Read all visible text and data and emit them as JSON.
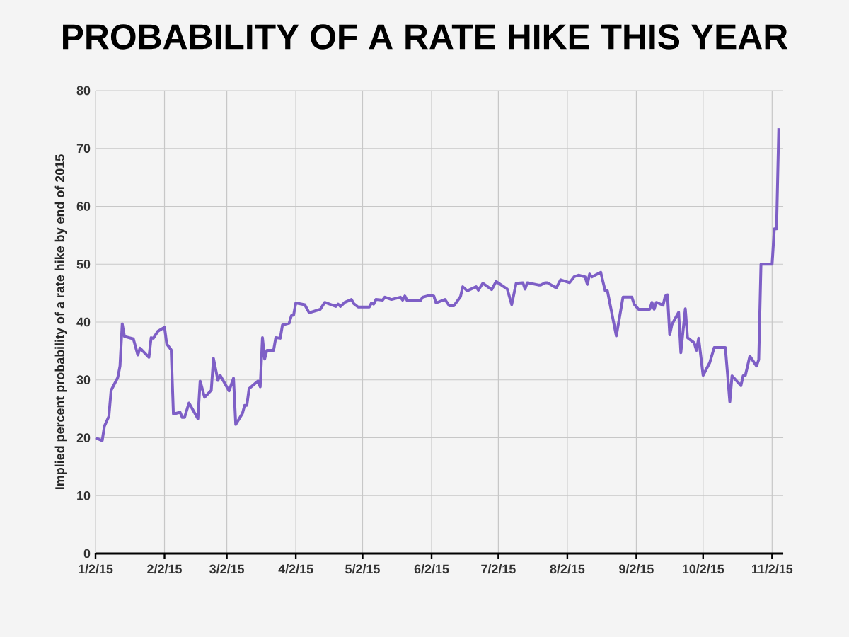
{
  "chart_data": {
    "type": "line",
    "title": "PROBABILITY OF A RATE HIKE THIS YEAR",
    "ylabel": "Implied percent probability of a rate hike by end of 2015",
    "color": "#7e5fc6",
    "grid": true,
    "xlim": [
      "2015-01-02",
      "2015-11-07"
    ],
    "ylim": [
      0,
      80
    ],
    "yticks": [
      0,
      10,
      20,
      30,
      40,
      50,
      60,
      70,
      80
    ],
    "xticks": [
      {
        "value": "2015-01-02",
        "label": "1/2/15"
      },
      {
        "value": "2015-02-02",
        "label": "2/2/15"
      },
      {
        "value": "2015-03-02",
        "label": "3/2/15"
      },
      {
        "value": "2015-04-02",
        "label": "4/2/15"
      },
      {
        "value": "2015-05-02",
        "label": "5/2/15"
      },
      {
        "value": "2015-06-02",
        "label": "6/2/15"
      },
      {
        "value": "2015-07-02",
        "label": "7/2/15"
      },
      {
        "value": "2015-08-02",
        "label": "8/2/15"
      },
      {
        "value": "2015-09-02",
        "label": "9/2/15"
      },
      {
        "value": "2015-10-02",
        "label": "10/2/15"
      },
      {
        "value": "2015-11-02",
        "label": "11/2/15"
      }
    ],
    "x": [
      "2015-01-02",
      "2015-01-05",
      "2015-01-06",
      "2015-01-08",
      "2015-01-09",
      "2015-01-12",
      "2015-01-13",
      "2015-01-14",
      "2015-01-15",
      "2015-01-19",
      "2015-01-21",
      "2015-01-22",
      "2015-01-26",
      "2015-01-27",
      "2015-01-28",
      "2015-01-30",
      "2015-02-02",
      "2015-02-03",
      "2015-02-05",
      "2015-02-06",
      "2015-02-09",
      "2015-02-10",
      "2015-02-11",
      "2015-02-13",
      "2015-02-17",
      "2015-02-18",
      "2015-02-20",
      "2015-02-23",
      "2015-02-24",
      "2015-02-26",
      "2015-02-27",
      "2015-03-03",
      "2015-03-05",
      "2015-03-06",
      "2015-03-09",
      "2015-03-10",
      "2015-03-11",
      "2015-03-12",
      "2015-03-16",
      "2015-03-17",
      "2015-03-18",
      "2015-03-19",
      "2015-03-20",
      "2015-03-23",
      "2015-03-24",
      "2015-03-26",
      "2015-03-27",
      "2015-03-30",
      "2015-03-31",
      "2015-04-01",
      "2015-04-02",
      "2015-04-06",
      "2015-04-08",
      "2015-04-13",
      "2015-04-15",
      "2015-04-20",
      "2015-04-21",
      "2015-04-22",
      "2015-04-24",
      "2015-04-27",
      "2015-04-28",
      "2015-04-30",
      "2015-05-05",
      "2015-05-06",
      "2015-05-07",
      "2015-05-08",
      "2015-05-11",
      "2015-05-12",
      "2015-05-15",
      "2015-05-19",
      "2015-05-20",
      "2015-05-21",
      "2015-05-22",
      "2015-05-28",
      "2015-05-29",
      "2015-06-01",
      "2015-06-03",
      "2015-06-04",
      "2015-06-08",
      "2015-06-10",
      "2015-06-12",
      "2015-06-15",
      "2015-06-16",
      "2015-06-18",
      "2015-06-22",
      "2015-06-23",
      "2015-06-25",
      "2015-06-29",
      "2015-07-01",
      "2015-07-06",
      "2015-07-08",
      "2015-07-10",
      "2015-07-13",
      "2015-07-14",
      "2015-07-15",
      "2015-07-20",
      "2015-07-21",
      "2015-07-23",
      "2015-07-24",
      "2015-07-28",
      "2015-07-30",
      "2015-08-03",
      "2015-08-05",
      "2015-08-07",
      "2015-08-10",
      "2015-08-11",
      "2015-08-12",
      "2015-08-13",
      "2015-08-17",
      "2015-08-19",
      "2015-08-20",
      "2015-08-24",
      "2015-08-27",
      "2015-08-31",
      "2015-09-01",
      "2015-09-03",
      "2015-09-08",
      "2015-09-09",
      "2015-09-10",
      "2015-09-11",
      "2015-09-14",
      "2015-09-15",
      "2015-09-16",
      "2015-09-17",
      "2015-09-18",
      "2015-09-21",
      "2015-09-22",
      "2015-09-24",
      "2015-09-25",
      "2015-09-28",
      "2015-09-29",
      "2015-09-30",
      "2015-10-02",
      "2015-10-05",
      "2015-10-07",
      "2015-10-12",
      "2015-10-14",
      "2015-10-15",
      "2015-10-19",
      "2015-10-20",
      "2015-10-21",
      "2015-10-23",
      "2015-10-26",
      "2015-10-27",
      "2015-10-28",
      "2015-11-02",
      "2015-11-03",
      "2015-11-04",
      "2015-11-05"
    ],
    "values": [
      20.0,
      19.5,
      22,
      23.7,
      28.2,
      30.4,
      32.4,
      39.7,
      37.5,
      37.1,
      34.3,
      35.5,
      33.9,
      37.3,
      37.2,
      38.4,
      39.1,
      36.2,
      35.2,
      24.1,
      24.4,
      23.5,
      23.5,
      26.0,
      23.3,
      29.8,
      27,
      28.2,
      33.7,
      29.9,
      30.8,
      28.1,
      30.3,
      22.3,
      24.2,
      25.6,
      25.6,
      28.5,
      29.8,
      28.8,
      37.3,
      33.6,
      35.1,
      35.1,
      37.3,
      37.2,
      39.5,
      39.8,
      41.1,
      41.2,
      43.3,
      43.0,
      41.6,
      42.2,
      43.4,
      42.7,
      43.1,
      42.7,
      43.4,
      43.9,
      43.2,
      42.6,
      42.6,
      43.3,
      43.1,
      43.9,
      43.8,
      44.3,
      43.9,
      44.3,
      43.8,
      44.5,
      43.7,
      43.7,
      44.3,
      44.6,
      44.5,
      43.3,
      43.9,
      42.8,
      42.8,
      44.4,
      46.1,
      45.4,
      46.1,
      45.5,
      46.7,
      45.6,
      47.0,
      45.7,
      43.0,
      46.7,
      46.8,
      45.7,
      46.8,
      46.4,
      46.4,
      46.8,
      46.8,
      45.9,
      47.3,
      46.8,
      47.8,
      48.1,
      47.8,
      46.5,
      48.3,
      47.8,
      48.6,
      45.4,
      45.4,
      37.6,
      44.3,
      44.3,
      43.1,
      42.2,
      42.2,
      43.4,
      42.2,
      43.4,
      42.9,
      44.5,
      44.7,
      37.8,
      39.6,
      41.7,
      34.7,
      42.3,
      37.3,
      36.4,
      35.1,
      37.2,
      30.8,
      33.0,
      35.6,
      35.6,
      26.2,
      30.7,
      29.0,
      30.7,
      30.8,
      34.1,
      32.4,
      33.5,
      50.0,
      50.0,
      56.1,
      56.1,
      73.5
    ]
  }
}
